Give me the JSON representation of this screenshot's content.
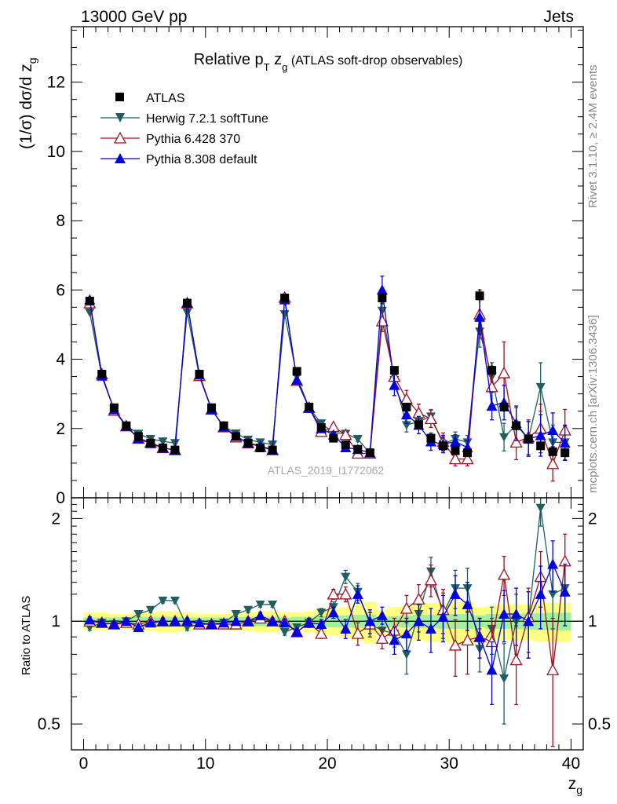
{
  "header": {
    "left": "13000 GeV pp",
    "right": "Jets"
  },
  "side_text": {
    "rivet": "Rivet 3.1.10, ≥ 2.4M events",
    "mcplots": "mcplots.cern.ch [arXiv:1306.3436]"
  },
  "watermark": "ATLAS_2019_I1772062",
  "colors": {
    "data": "#000000",
    "herwig": "#1f5f5f",
    "pythia6": "#a01020",
    "pythia8": "#0000e0",
    "band_inner": "#a0f0a0",
    "band_outer": "#ffff80"
  },
  "chart_data": [
    {
      "type": "scatter",
      "title": "Relative p_T z_g (ATLAS soft-drop observables)",
      "title_parts": {
        "main": "Relative p",
        "sub1": "T",
        "mid": " z",
        "sub2": "g",
        "tail": " (ATLAS soft-drop observables)"
      },
      "ylabel": "(1/σ) dσ/d z_g",
      "ylabel_parts": {
        "main": "(1/σ) dσ/d z",
        "sub": "g"
      },
      "xlim": [
        -1,
        41
      ],
      "ylim": [
        0,
        13.6
      ],
      "yticks": [
        0,
        2,
        4,
        6,
        8,
        10,
        12
      ],
      "legend_position": "top-left",
      "x": [
        0.5,
        1.5,
        2.5,
        3.5,
        4.5,
        5.5,
        6.5,
        7.5,
        8.5,
        9.5,
        10.5,
        11.5,
        12.5,
        13.5,
        14.5,
        15.5,
        16.5,
        17.5,
        18.5,
        19.5,
        20.5,
        21.5,
        22.5,
        23.5,
        24.5,
        25.5,
        26.5,
        27.5,
        28.5,
        29.5,
        30.5,
        31.5,
        32.5,
        33.5,
        34.5,
        35.5,
        36.5,
        37.5,
        38.5,
        39.5
      ],
      "series": [
        {
          "name": "ATLAS",
          "key": "data",
          "marker": "square",
          "values": [
            5.68,
            3.57,
            2.6,
            2.08,
            1.77,
            1.58,
            1.44,
            1.38,
            5.62,
            3.57,
            2.6,
            2.08,
            1.77,
            1.58,
            1.44,
            1.38,
            5.77,
            3.65,
            2.62,
            2.03,
            1.72,
            1.53,
            1.4,
            1.3,
            5.77,
            3.68,
            2.62,
            2.11,
            1.72,
            1.5,
            1.36,
            1.3,
            5.83,
            3.68,
            2.62,
            2.08,
            1.7,
            1.5,
            1.33,
            1.3
          ],
          "err": [
            0.12,
            0.08,
            0.06,
            0.05,
            0.05,
            0.04,
            0.04,
            0.04,
            0.12,
            0.08,
            0.06,
            0.05,
            0.05,
            0.04,
            0.04,
            0.04,
            0.12,
            0.09,
            0.07,
            0.06,
            0.06,
            0.05,
            0.05,
            0.05,
            0.15,
            0.12,
            0.1,
            0.09,
            0.08,
            0.08,
            0.08,
            0.08,
            0.2,
            0.2,
            0.15,
            0.15,
            0.15,
            0.15,
            0.15,
            0.15
          ]
        },
        {
          "name": "Herwig 7.2.1 softTune",
          "key": "herwig",
          "marker": "triangle-down",
          "values": [
            5.35,
            3.5,
            2.55,
            2.08,
            1.85,
            1.7,
            1.63,
            1.58,
            5.35,
            3.5,
            2.55,
            2.06,
            1.86,
            1.68,
            1.6,
            1.54,
            5.3,
            3.5,
            2.6,
            2.15,
            1.88,
            1.85,
            1.7,
            1.28,
            5.4,
            3.4,
            2.1,
            2.2,
            2.35,
            1.55,
            1.7,
            1.6,
            4.8,
            3.5,
            1.75,
            2.1,
            1.7,
            3.2,
            1.6,
            1.6
          ],
          "err": [
            0.04,
            0.03,
            0.03,
            0.03,
            0.03,
            0.03,
            0.03,
            0.03,
            0.04,
            0.03,
            0.03,
            0.03,
            0.03,
            0.03,
            0.03,
            0.03,
            0.05,
            0.05,
            0.05,
            0.05,
            0.06,
            0.08,
            0.08,
            0.08,
            0.25,
            0.2,
            0.2,
            0.2,
            0.2,
            0.2,
            0.2,
            0.2,
            0.45,
            0.4,
            0.4,
            0.5,
            0.5,
            0.7,
            0.5,
            0.5
          ]
        },
        {
          "name": "Pythia 6.428 370",
          "key": "pythia6",
          "marker": "triangle-up-open",
          "values": [
            5.62,
            3.57,
            2.52,
            2.07,
            1.72,
            1.6,
            1.44,
            1.38,
            5.62,
            3.52,
            2.55,
            2.04,
            1.75,
            1.58,
            1.47,
            1.38,
            5.78,
            3.38,
            2.6,
            1.91,
            2.05,
            1.82,
            1.28,
            1.28,
            5.1,
            3.5,
            2.85,
            2.45,
            2.28,
            1.62,
            1.12,
            1.12,
            5.3,
            3.2,
            3.6,
            1.6,
            1.75,
            2.0,
            0.98,
            1.95
          ],
          "err": [
            0.04,
            0.03,
            0.03,
            0.03,
            0.03,
            0.03,
            0.03,
            0.03,
            0.04,
            0.03,
            0.03,
            0.03,
            0.03,
            0.03,
            0.03,
            0.03,
            0.05,
            0.05,
            0.05,
            0.06,
            0.07,
            0.08,
            0.08,
            0.08,
            0.3,
            0.25,
            0.25,
            0.25,
            0.25,
            0.25,
            0.2,
            0.2,
            0.7,
            0.6,
            0.9,
            0.5,
            0.5,
            0.7,
            0.5,
            0.6
          ]
        },
        {
          "name": "Pythia 8.308 default",
          "key": "pythia8",
          "marker": "triangle-up",
          "values": [
            5.72,
            3.52,
            2.55,
            2.07,
            1.7,
            1.57,
            1.44,
            1.38,
            5.62,
            3.55,
            2.55,
            2.05,
            1.78,
            1.58,
            1.5,
            1.38,
            5.72,
            3.4,
            2.6,
            2.0,
            1.82,
            1.45,
            1.4,
            1.3,
            6.0,
            3.25,
            2.4,
            2.1,
            1.62,
            1.55,
            1.62,
            1.45,
            5.22,
            2.65,
            2.75,
            2.15,
            1.7,
            1.8,
            1.95,
            1.58
          ],
          "err": [
            0.04,
            0.03,
            0.03,
            0.03,
            0.03,
            0.03,
            0.03,
            0.03,
            0.04,
            0.03,
            0.03,
            0.03,
            0.03,
            0.03,
            0.03,
            0.03,
            0.05,
            0.05,
            0.05,
            0.06,
            0.07,
            0.08,
            0.08,
            0.08,
            0.4,
            0.3,
            0.25,
            0.25,
            0.25,
            0.25,
            0.2,
            0.2,
            0.5,
            0.4,
            0.5,
            0.5,
            0.5,
            0.6,
            0.5,
            0.5
          ]
        }
      ]
    },
    {
      "type": "scatter",
      "xlabel": "z_g",
      "xlabel_parts": {
        "main": "z",
        "sub": "g"
      },
      "ylabel": "Ratio to ATLAS",
      "xlim": [
        -1,
        41
      ],
      "ylim": [
        0.42,
        2.3
      ],
      "yscale": "log",
      "xticks": [
        0,
        10,
        20,
        30,
        40
      ],
      "yticks": [
        0.5,
        1,
        2
      ],
      "band_inner": [
        0.025,
        0.025,
        0.025,
        0.025,
        0.03,
        0.03,
        0.03,
        0.03,
        0.025,
        0.025,
        0.025,
        0.025,
        0.03,
        0.03,
        0.03,
        0.03,
        0.025,
        0.03,
        0.03,
        0.035,
        0.04,
        0.04,
        0.045,
        0.045,
        0.03,
        0.035,
        0.04,
        0.045,
        0.045,
        0.05,
        0.05,
        0.05,
        0.04,
        0.05,
        0.05,
        0.05,
        0.055,
        0.055,
        0.06,
        0.06
      ],
      "band_outer": [
        0.06,
        0.06,
        0.05,
        0.05,
        0.06,
        0.06,
        0.07,
        0.07,
        0.06,
        0.05,
        0.05,
        0.05,
        0.06,
        0.06,
        0.07,
        0.07,
        0.06,
        0.06,
        0.07,
        0.08,
        0.09,
        0.1,
        0.12,
        0.14,
        0.08,
        0.1,
        0.11,
        0.12,
        0.13,
        0.13,
        0.14,
        0.14,
        0.1,
        0.11,
        0.12,
        0.12,
        0.12,
        0.13,
        0.13,
        0.13
      ],
      "series": [
        {
          "name": "Herwig 7.2.1 softTune",
          "key": "herwig",
          "marker": "triangle-down",
          "values": [
            0.96,
            0.99,
            0.98,
            1.0,
            1.05,
            1.08,
            1.15,
            1.15,
            0.96,
            0.98,
            0.98,
            0.99,
            1.05,
            1.08,
            1.12,
            1.12,
            0.93,
            0.96,
            0.99,
            1.06,
            1.1,
            1.35,
            1.22,
            0.98,
            0.94,
            0.92,
            0.8,
            1.05,
            1.4,
            1.05,
            1.25,
            1.25,
            0.83,
            0.95,
            0.68,
            1.0,
            1.0,
            2.15,
            1.2,
            1.25
          ],
          "err": [
            0.02,
            0.02,
            0.02,
            0.02,
            0.02,
            0.02,
            0.02,
            0.02,
            0.02,
            0.02,
            0.02,
            0.02,
            0.02,
            0.02,
            0.02,
            0.02,
            0.02,
            0.02,
            0.03,
            0.03,
            0.04,
            0.06,
            0.07,
            0.08,
            0.06,
            0.08,
            0.1,
            0.12,
            0.14,
            0.16,
            0.16,
            0.18,
            0.12,
            0.15,
            0.18,
            0.2,
            0.22,
            0.25,
            0.25,
            0.25
          ]
        },
        {
          "name": "Pythia 6.428 370",
          "key": "pythia6",
          "marker": "triangle-up-open",
          "values": [
            1.0,
            0.99,
            0.98,
            0.99,
            0.98,
            1.0,
            1.0,
            1.0,
            1.0,
            0.98,
            0.98,
            0.98,
            0.98,
            1.0,
            1.02,
            1.0,
            1.0,
            0.93,
            0.99,
            0.92,
            1.2,
            1.2,
            0.92,
            0.98,
            0.89,
            0.94,
            1.09,
            1.16,
            1.32,
            1.08,
            0.85,
            0.88,
            0.9,
            0.87,
            1.37,
            0.77,
            1.03,
            1.35,
            0.72,
            1.5
          ],
          "err": [
            0.02,
            0.02,
            0.02,
            0.02,
            0.02,
            0.02,
            0.02,
            0.02,
            0.02,
            0.02,
            0.02,
            0.02,
            0.02,
            0.02,
            0.02,
            0.02,
            0.02,
            0.02,
            0.03,
            0.03,
            0.04,
            0.06,
            0.07,
            0.08,
            0.06,
            0.08,
            0.1,
            0.12,
            0.14,
            0.16,
            0.16,
            0.18,
            0.12,
            0.15,
            0.18,
            0.2,
            0.22,
            0.25,
            0.3,
            0.3
          ]
        },
        {
          "name": "Pythia 8.308 default",
          "key": "pythia8",
          "marker": "triangle-up",
          "values": [
            1.01,
            0.99,
            0.98,
            1.0,
            0.96,
            0.99,
            1.0,
            1.0,
            1.0,
            0.99,
            0.98,
            0.99,
            1.0,
            1.0,
            1.04,
            1.0,
            0.99,
            0.93,
            0.99,
            0.98,
            1.06,
            0.95,
            1.2,
            1.0,
            1.04,
            0.88,
            0.92,
            1.0,
            0.95,
            1.03,
            1.2,
            1.12,
            0.9,
            0.72,
            1.05,
            1.05,
            1.0,
            1.2,
            1.47,
            1.22
          ],
          "err": [
            0.02,
            0.02,
            0.02,
            0.02,
            0.02,
            0.02,
            0.02,
            0.02,
            0.02,
            0.02,
            0.02,
            0.02,
            0.02,
            0.02,
            0.02,
            0.02,
            0.02,
            0.02,
            0.03,
            0.03,
            0.04,
            0.06,
            0.07,
            0.08,
            0.06,
            0.08,
            0.1,
            0.12,
            0.14,
            0.16,
            0.16,
            0.18,
            0.12,
            0.15,
            0.18,
            0.2,
            0.22,
            0.25,
            0.25,
            0.25
          ]
        }
      ]
    }
  ]
}
